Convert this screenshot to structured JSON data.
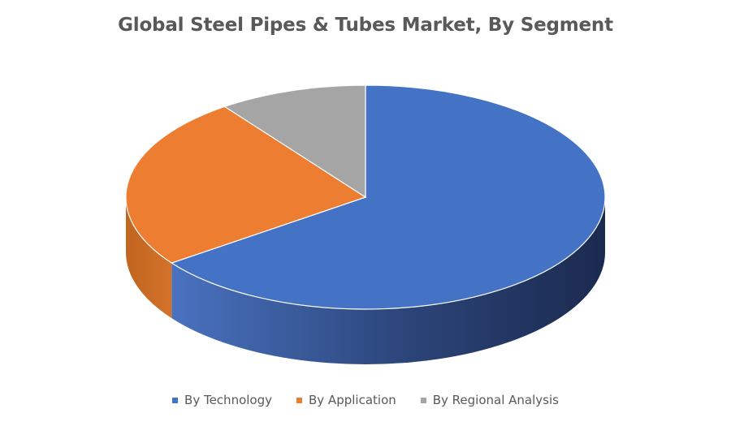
{
  "chart_data": {
    "type": "pie",
    "title": "Global Steel Pipes & Tubes Market, By Segment",
    "categories": [
      "By Technology",
      "By Application",
      "By Regional Analysis"
    ],
    "values": [
      65,
      25,
      10
    ],
    "colors": [
      "#4472C4",
      "#ED7D31",
      "#A5A5A5"
    ],
    "side_colors": [
      "#2E4C85",
      "#B85E20",
      "#7A7A7A"
    ],
    "legend_position": "bottom",
    "style": "3d"
  }
}
